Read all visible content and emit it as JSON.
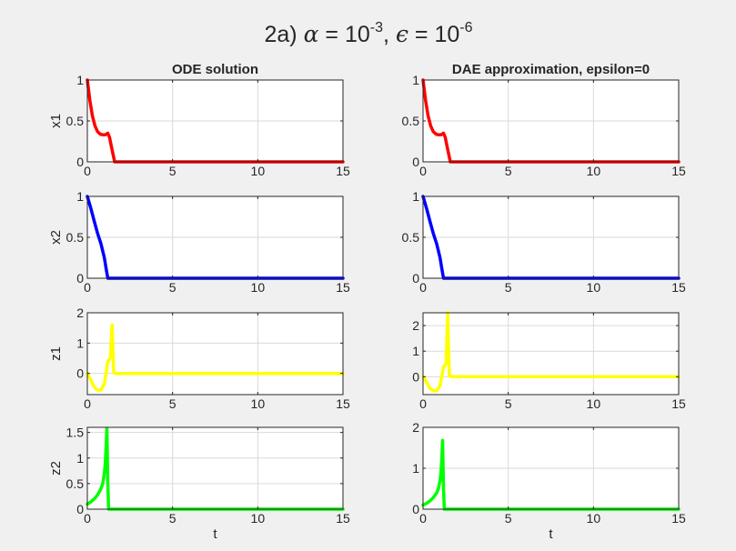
{
  "figure": {
    "title_prefix": "2a) ",
    "title_alpha_symbol": "α",
    "title_alpha_eq": " = 10",
    "title_alpha_exp": "-3",
    "title_sep": ", ",
    "title_eps_symbol": "ϵ",
    "title_eps_eq": " = 10",
    "title_eps_exp": "-6",
    "background": "#f0f0f0"
  },
  "colors": {
    "x1": "#ff0000",
    "x2": "#0000ff",
    "z1": "#ffff00",
    "z2": "#00ff00",
    "grid": "#d9d9d9",
    "axes": "#262626"
  },
  "chart_data": [
    {
      "type": "line",
      "title": "ODE solution",
      "xlabel": "",
      "ylabel": "x1",
      "xlim": [
        0,
        15
      ],
      "ylim": [
        0,
        1
      ],
      "xticks": [
        0,
        5,
        10,
        15
      ],
      "yticks": [
        0,
        0.5,
        1
      ],
      "ytick_labels": [
        "0",
        "0.5",
        "1"
      ],
      "grid": true,
      "color_key": "x1",
      "series": [
        {
          "x": [
            0,
            0.15,
            0.3,
            0.45,
            0.6,
            0.75,
            0.9,
            1.05,
            1.2,
            1.3,
            1.4,
            1.5,
            1.6,
            15
          ],
          "y": [
            1,
            0.75,
            0.56,
            0.44,
            0.37,
            0.34,
            0.33,
            0.33,
            0.35,
            0.3,
            0.2,
            0.1,
            0,
            0
          ]
        }
      ]
    },
    {
      "type": "line",
      "title": "DAE approximation, epsilon=0",
      "xlabel": "",
      "ylabel": "",
      "xlim": [
        0,
        15
      ],
      "ylim": [
        0,
        1
      ],
      "xticks": [
        0,
        5,
        10,
        15
      ],
      "yticks": [
        0,
        0.5,
        1
      ],
      "ytick_labels": [
        "0",
        "0.5",
        "1"
      ],
      "grid": true,
      "color_key": "x1",
      "series": [
        {
          "x": [
            0,
            0.15,
            0.3,
            0.45,
            0.6,
            0.75,
            0.9,
            1.05,
            1.2,
            1.3,
            1.4,
            1.5,
            1.6,
            15
          ],
          "y": [
            1,
            0.75,
            0.56,
            0.44,
            0.37,
            0.34,
            0.33,
            0.33,
            0.35,
            0.3,
            0.2,
            0.1,
            0,
            0
          ]
        }
      ]
    },
    {
      "type": "line",
      "title": "",
      "xlabel": "",
      "ylabel": "x2",
      "xlim": [
        0,
        15
      ],
      "ylim": [
        0,
        1
      ],
      "xticks": [
        0,
        5,
        10,
        15
      ],
      "yticks": [
        0,
        0.5,
        1
      ],
      "ytick_labels": [
        "0",
        "0.5",
        "1"
      ],
      "grid": true,
      "color_key": "x2",
      "series": [
        {
          "x": [
            0,
            0.2,
            0.4,
            0.6,
            0.8,
            1.0,
            1.1,
            1.2,
            15
          ],
          "y": [
            1,
            0.86,
            0.7,
            0.55,
            0.42,
            0.25,
            0.12,
            0,
            0
          ]
        }
      ]
    },
    {
      "type": "line",
      "title": "",
      "xlabel": "",
      "ylabel": "",
      "xlim": [
        0,
        15
      ],
      "ylim": [
        0,
        1
      ],
      "xticks": [
        0,
        5,
        10,
        15
      ],
      "yticks": [
        0,
        0.5,
        1
      ],
      "ytick_labels": [
        "0",
        "0.5",
        "1"
      ],
      "grid": true,
      "color_key": "x2",
      "series": [
        {
          "x": [
            0,
            0.2,
            0.4,
            0.6,
            0.8,
            1.0,
            1.1,
            1.2,
            15
          ],
          "y": [
            1,
            0.86,
            0.7,
            0.55,
            0.42,
            0.25,
            0.12,
            0,
            0
          ]
        }
      ]
    },
    {
      "type": "line",
      "title": "",
      "xlabel": "",
      "ylabel": "z1",
      "xlim": [
        0,
        15
      ],
      "ylim": [
        -0.7,
        2
      ],
      "xticks": [
        0,
        5,
        10,
        15
      ],
      "yticks": [
        0,
        1,
        2
      ],
      "ytick_labels": [
        "0",
        "1",
        "2"
      ],
      "grid": true,
      "color_key": "z1",
      "series": [
        {
          "x": [
            0,
            0.2,
            0.4,
            0.6,
            0.8,
            1.0,
            1.1,
            1.2,
            1.35,
            1.45,
            1.5,
            1.55,
            1.62,
            15
          ],
          "y": [
            0,
            -0.2,
            -0.45,
            -0.55,
            -0.55,
            -0.35,
            0,
            0.4,
            0.5,
            1.6,
            0.8,
            0.05,
            0,
            0
          ]
        }
      ]
    },
    {
      "type": "line",
      "title": "",
      "xlabel": "",
      "ylabel": "",
      "xlim": [
        0,
        15
      ],
      "ylim": [
        -0.7,
        2.5
      ],
      "xticks": [
        0,
        5,
        10,
        15
      ],
      "yticks": [
        0,
        1,
        2
      ],
      "ytick_labels": [
        "0",
        "1",
        "2"
      ],
      "grid": true,
      "color_key": "z1",
      "series": [
        {
          "x": [
            0,
            0.2,
            0.4,
            0.6,
            0.8,
            1.0,
            1.1,
            1.2,
            1.35,
            1.45,
            1.5,
            1.55,
            1.62,
            15
          ],
          "y": [
            0,
            -0.2,
            -0.45,
            -0.55,
            -0.55,
            -0.35,
            0,
            0.4,
            0.5,
            2.5,
            1.0,
            0.05,
            0,
            0
          ]
        }
      ]
    },
    {
      "type": "line",
      "title": "",
      "xlabel": "t",
      "ylabel": "z2",
      "xlim": [
        0,
        15
      ],
      "ylim": [
        0,
        1.6
      ],
      "xticks": [
        0,
        5,
        10,
        15
      ],
      "yticks": [
        0,
        0.5,
        1,
        1.5
      ],
      "ytick_labels": [
        "0",
        "0.5",
        "1",
        "1.5"
      ],
      "grid": true,
      "color_key": "z2",
      "series": [
        {
          "x": [
            0,
            0.2,
            0.4,
            0.6,
            0.8,
            0.9,
            1.0,
            1.05,
            1.1,
            1.15,
            1.2,
            1.25,
            15
          ],
          "y": [
            0.1,
            0.14,
            0.2,
            0.28,
            0.4,
            0.5,
            0.7,
            0.9,
            1.2,
            1.58,
            0.5,
            0,
            0
          ]
        }
      ]
    },
    {
      "type": "line",
      "title": "",
      "xlabel": "t",
      "ylabel": "",
      "xlim": [
        0,
        15
      ],
      "ylim": [
        0,
        2
      ],
      "xticks": [
        0,
        5,
        10,
        15
      ],
      "yticks": [
        0,
        1,
        2
      ],
      "ytick_labels": [
        "0",
        "1",
        "2"
      ],
      "grid": true,
      "color_key": "z2",
      "series": [
        {
          "x": [
            0,
            0.2,
            0.4,
            0.6,
            0.8,
            0.9,
            1.0,
            1.05,
            1.1,
            1.15,
            1.2,
            1.25,
            15
          ],
          "y": [
            0.1,
            0.14,
            0.2,
            0.28,
            0.4,
            0.5,
            0.7,
            0.9,
            1.2,
            1.68,
            0.5,
            0,
            0
          ]
        }
      ]
    }
  ]
}
